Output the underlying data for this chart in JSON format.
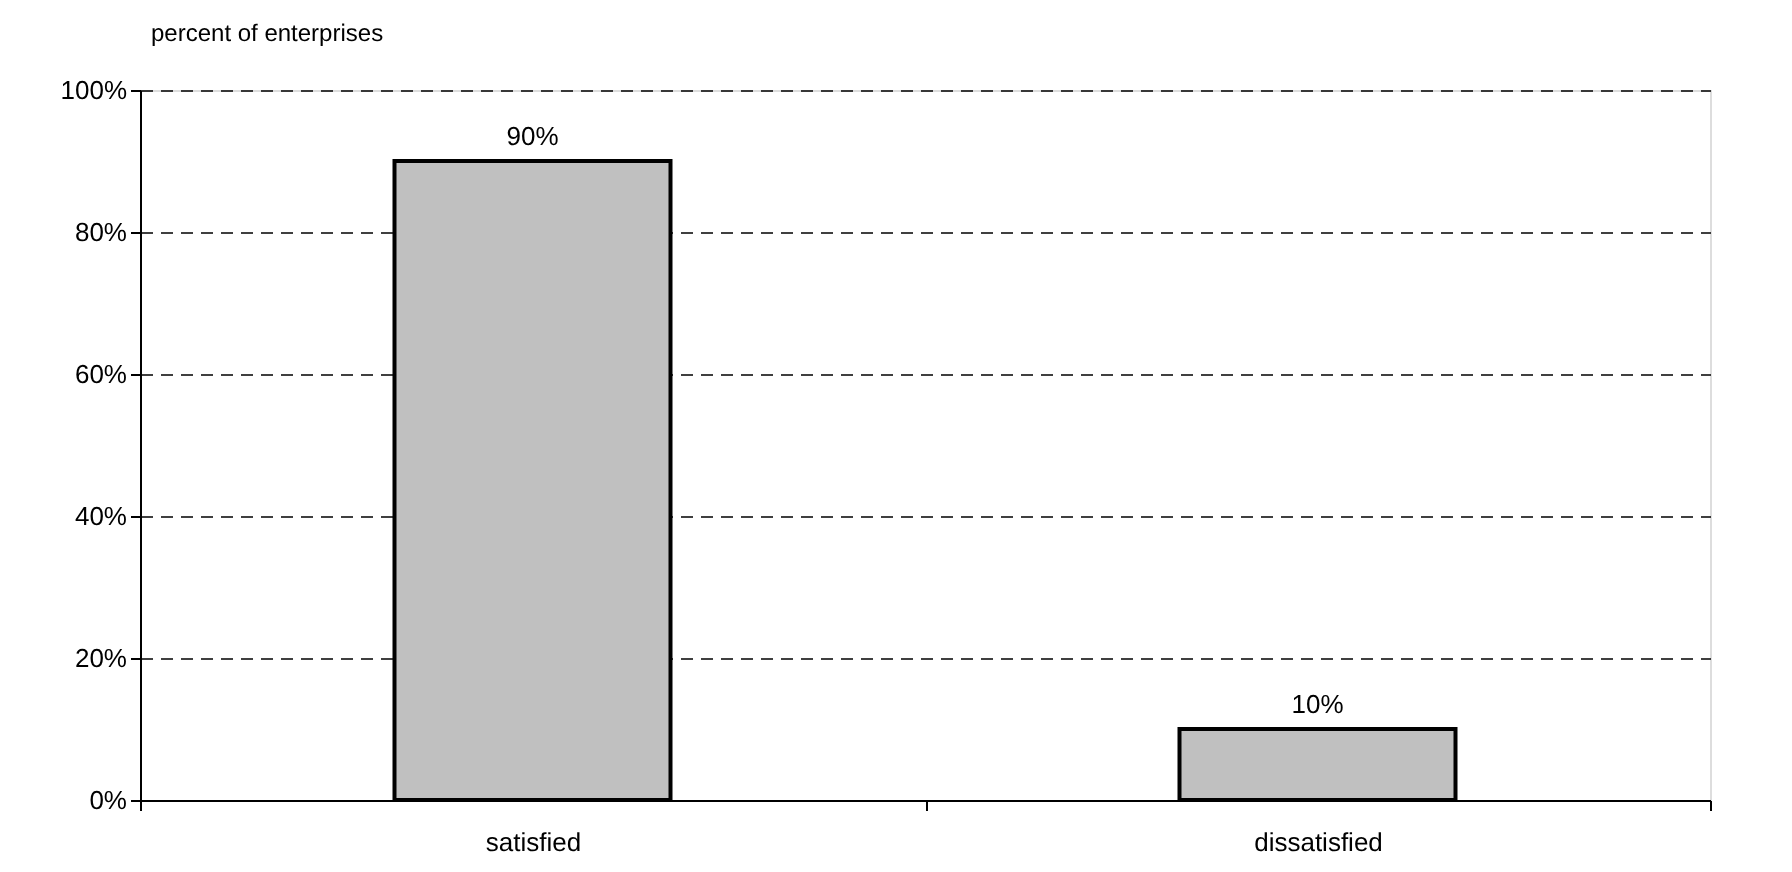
{
  "chart_data": {
    "type": "bar",
    "ylabel": "percent of enterprises",
    "categories": [
      "satisfied",
      "dissatisfied"
    ],
    "values": [
      90,
      10
    ],
    "color": "#c0c0c0",
    "value_labels": [
      "90%",
      "10%"
    ],
    "ylim": [
      0,
      100
    ],
    "yticks": [
      {
        "value": 0,
        "label": "0%"
      },
      {
        "value": 20,
        "label": "20%"
      },
      {
        "value": 40,
        "label": "40%"
      },
      {
        "value": 60,
        "label": "60%"
      },
      {
        "value": 80,
        "label": "80%"
      },
      {
        "value": 100,
        "label": "100%"
      }
    ],
    "grid": "y"
  }
}
